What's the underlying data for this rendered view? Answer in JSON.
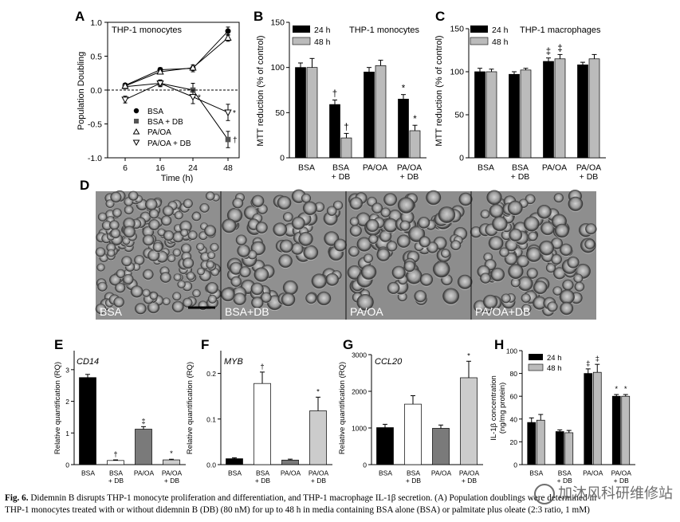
{
  "panels": {
    "A": {
      "letter": "A",
      "title": "THP-1 monocytes",
      "ylabel": "Population Doubling",
      "xlabel": "Time (h)",
      "yticks": [
        "1.0",
        "0.5",
        "0.0",
        "-0.5",
        "-1.0"
      ],
      "xticks": [
        "6",
        "16",
        "24",
        "48"
      ],
      "legend": [
        "BSA",
        "BSA + DB",
        "PA/OA",
        "PA/OA + DB"
      ]
    },
    "B": {
      "letter": "B",
      "title": "THP-1 monocytes",
      "ylabel": "MTT reduction (% of control)",
      "legend": [
        "24 h",
        "48 h"
      ],
      "yticks": [
        "150",
        "100",
        "50",
        "0"
      ],
      "xticks": [
        [
          "BSA",
          ""
        ],
        [
          "BSA",
          "+ DB"
        ],
        [
          "PA/OA",
          ""
        ],
        [
          "PA/OA",
          "+ DB"
        ]
      ]
    },
    "C": {
      "letter": "C",
      "title": "THP-1 macrophages",
      "ylabel": "MTT reduction (% of control)",
      "legend": [
        "24 h",
        "48 h"
      ],
      "yticks": [
        "150",
        "100",
        "50",
        "0"
      ],
      "xticks": [
        [
          "BSA",
          ""
        ],
        [
          "BSA",
          "+ DB"
        ],
        [
          "PA/OA",
          ""
        ],
        [
          "PA/OA",
          "+ DB"
        ]
      ]
    },
    "D": {
      "letter": "D",
      "labels": [
        "BSA",
        "BSA+DB",
        "PA/OA",
        "PA/OA+DB"
      ]
    },
    "E": {
      "letter": "E",
      "gene": "CD14",
      "ylabel": "Relative quantification (RQ)",
      "yticks": [
        "3",
        "2",
        "1",
        "0"
      ],
      "xticks": [
        [
          "BSA",
          ""
        ],
        [
          "BSA",
          "+ DB"
        ],
        [
          "PA/OA",
          ""
        ],
        [
          "PA/OA",
          "+ DB"
        ]
      ]
    },
    "F": {
      "letter": "F",
      "gene": "MYB",
      "ylabel": "Relative quantification (RQ)",
      "yticks": [
        "0.2",
        "0.1",
        "0.0"
      ],
      "xticks": [
        [
          "BSA",
          ""
        ],
        [
          "BSA",
          "+ DB"
        ],
        [
          "PA/OA",
          ""
        ],
        [
          "PA/OA",
          "+ DB"
        ]
      ]
    },
    "G": {
      "letter": "G",
      "gene": "CCL20",
      "ylabel": "Relative quantification (RQ)",
      "yticks": [
        "3000",
        "2000",
        "1000",
        "0"
      ],
      "xticks": [
        [
          "BSA",
          ""
        ],
        [
          "BSA",
          "+ DB"
        ],
        [
          "PA/OA",
          ""
        ],
        [
          "PA/OA",
          "+ DB"
        ]
      ]
    },
    "H": {
      "letter": "H",
      "ylabel1": "IL-1β concentration",
      "ylabel2": "(ng/mg protein)",
      "legend": [
        "24 h",
        "48 h"
      ],
      "yticks": [
        "100",
        "80",
        "60",
        "40",
        "20",
        "0"
      ],
      "xticks": [
        [
          "BSA",
          ""
        ],
        [
          "BSA",
          "+ DB"
        ],
        [
          "PA/OA",
          ""
        ],
        [
          "PA/OA",
          "+ DB"
        ]
      ]
    }
  },
  "chart_data": [
    {
      "panel": "A",
      "type": "line",
      "title": "THP-1 monocytes",
      "xlabel": "Time (h)",
      "ylabel": "Population Doubling",
      "x": [
        6,
        16,
        24,
        48
      ],
      "ylim": [
        -1.0,
        1.0
      ],
      "series": [
        {
          "name": "BSA",
          "marker": "filled-circle",
          "values": [
            0.07,
            0.3,
            0.32,
            0.87
          ],
          "err": [
            0.03,
            0.03,
            0.05,
            0.06
          ]
        },
        {
          "name": "BSA + DB",
          "marker": "filled-square",
          "values": [
            0.05,
            0.1,
            0.0,
            -0.73
          ],
          "err": [
            0.03,
            0.04,
            0.1,
            0.12
          ],
          "sig": [
            "",
            "",
            "",
            "†"
          ]
        },
        {
          "name": "PA/OA",
          "marker": "open-triangle-up",
          "values": [
            0.06,
            0.27,
            0.33,
            0.77
          ],
          "err": [
            0.03,
            0.03,
            0.04,
            0.05
          ]
        },
        {
          "name": "PA/OA + DB",
          "marker": "open-triangle-down",
          "values": [
            -0.14,
            0.1,
            -0.1,
            -0.33
          ],
          "err": [
            0.05,
            0.05,
            0.1,
            0.12
          ],
          "sig": [
            "",
            "",
            "*",
            "*"
          ]
        }
      ],
      "reference_line": 0
    },
    {
      "panel": "B",
      "type": "bar",
      "title": "THP-1 monocytes",
      "ylabel": "MTT reduction (% of control)",
      "ylim": [
        0,
        150
      ],
      "categories": [
        "BSA",
        "BSA + DB",
        "PA/OA",
        "PA/OA + DB"
      ],
      "series": [
        {
          "name": "24 h",
          "color": "#000000",
          "values": [
            100,
            59,
            95,
            65
          ],
          "err": [
            5,
            5,
            5,
            5
          ],
          "sig": [
            "",
            "†",
            "",
            "*"
          ]
        },
        {
          "name": "48 h",
          "color": "#bbbbbb",
          "values": [
            100,
            22,
            102,
            30
          ],
          "err": [
            10,
            5,
            6,
            6
          ],
          "sig": [
            "",
            "†",
            "",
            "*"
          ]
        }
      ]
    },
    {
      "panel": "C",
      "type": "bar",
      "title": "THP-1 macrophages",
      "ylabel": "MTT reduction (% of control)",
      "ylim": [
        0,
        150
      ],
      "categories": [
        "BSA",
        "BSA + DB",
        "PA/OA",
        "PA/OA + DB"
      ],
      "series": [
        {
          "name": "24 h",
          "color": "#000000",
          "values": [
            100,
            97,
            112,
            108
          ],
          "err": [
            4,
            3,
            4,
            3
          ],
          "sig": [
            "",
            "",
            "‡",
            ""
          ]
        },
        {
          "name": "48 h",
          "color": "#bbbbbb",
          "values": [
            100,
            102,
            115,
            115
          ],
          "err": [
            3,
            2,
            5,
            5
          ],
          "sig": [
            "",
            "",
            "‡",
            ""
          ]
        }
      ]
    },
    {
      "panel": "E",
      "type": "bar",
      "gene": "CD14",
      "ylabel": "Relative quantification (RQ)",
      "ylim": [
        0,
        3.6
      ],
      "categories": [
        "BSA",
        "BSA + DB",
        "PA/OA",
        "PA/OA + DB"
      ],
      "values": [
        2.75,
        0.13,
        1.12,
        0.15
      ],
      "err": [
        0.1,
        0.02,
        0.08,
        0.02
      ],
      "sig": [
        "",
        "†",
        "‡",
        "*"
      ],
      "colors": [
        "#000000",
        "#ffffff",
        "#7a7a7a",
        "#cccccc"
      ]
    },
    {
      "panel": "F",
      "type": "bar",
      "gene": "MYB",
      "ylabel": "Relative quantification (RQ)",
      "ylim": [
        0,
        0.25
      ],
      "categories": [
        "BSA",
        "BSA + DB",
        "PA/OA",
        "PA/OA + DB"
      ],
      "values": [
        0.013,
        0.178,
        0.01,
        0.118
      ],
      "err": [
        0.002,
        0.025,
        0.002,
        0.03
      ],
      "sig": [
        "",
        "†",
        "",
        "*"
      ],
      "colors": [
        "#000000",
        "#ffffff",
        "#7a7a7a",
        "#cccccc"
      ]
    },
    {
      "panel": "G",
      "type": "bar",
      "gene": "CCL20",
      "ylabel": "Relative quantification (RQ)",
      "ylim": [
        0,
        3000
      ],
      "categories": [
        "BSA",
        "BSA + DB",
        "PA/OA",
        "PA/OA + DB"
      ],
      "values": [
        1010,
        1650,
        990,
        2370
      ],
      "err": [
        90,
        230,
        90,
        450
      ],
      "sig": [
        "",
        "",
        "",
        "*"
      ],
      "colors": [
        "#000000",
        "#ffffff",
        "#7a7a7a",
        "#cccccc"
      ]
    },
    {
      "panel": "H",
      "type": "bar",
      "ylabel": "IL-1β concentration (ng/mg protein)",
      "ylim": [
        0,
        100
      ],
      "categories": [
        "BSA",
        "BSA + DB",
        "PA/OA",
        "PA/OA + DB"
      ],
      "series": [
        {
          "name": "24 h",
          "color": "#000000",
          "values": [
            37,
            29,
            80,
            60
          ],
          "err": [
            4,
            1.5,
            4,
            1.5
          ],
          "sig": [
            "",
            "",
            "‡",
            "*"
          ]
        },
        {
          "name": "48 h",
          "color": "#bbbbbb",
          "values": [
            39,
            28,
            81,
            60
          ],
          "err": [
            5,
            2,
            7,
            1.5
          ],
          "sig": [
            "",
            "",
            "‡",
            "*"
          ]
        }
      ]
    }
  ],
  "caption": {
    "label": "Fig. 6.",
    "line1": "Didemnin B disrupts THP-1 monocyte proliferation and differentiation, and THP-1 macrophage IL-1β secretion. (A) Population doublings were determined in",
    "line2": "THP-1 monocytes treated with or without didemnin B (DB) (80 nM) for up to 48 h in media containing BSA alone (BSA) or palmitate plus oleate (2:3 ratio, 1 mM)"
  },
  "watermark": "加沐风科研维修站"
}
